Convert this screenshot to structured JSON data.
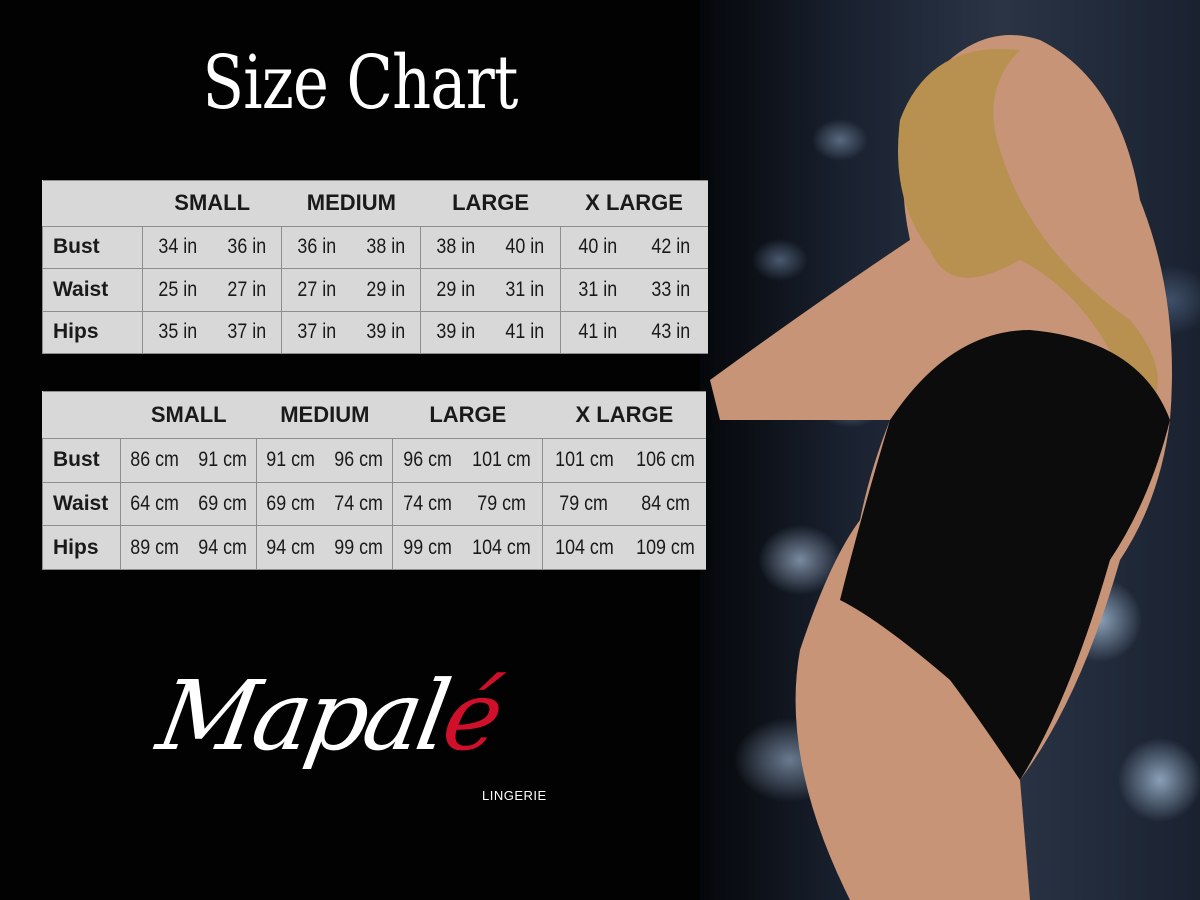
{
  "title": "Size Chart",
  "sizes": [
    "SMALL",
    "MEDIUM",
    "LARGE",
    "X LARGE"
  ],
  "tables": [
    {
      "unit": "in",
      "rows": [
        {
          "label": "Bust",
          "values": [
            "34 in",
            "36 in",
            "36 in",
            "38 in",
            "38 in",
            "40 in",
            "40 in",
            "42 in"
          ]
        },
        {
          "label": "Waist",
          "values": [
            "25 in",
            "27 in",
            "27 in",
            "29 in",
            "29 in",
            "31 in",
            "31 in",
            "33 in"
          ]
        },
        {
          "label": "Hips",
          "values": [
            "35 in",
            "37 in",
            "37 in",
            "39 in",
            "39 in",
            "41 in",
            "41 in",
            "43 in"
          ]
        }
      ]
    },
    {
      "unit": "cm",
      "rows": [
        {
          "label": "Bust",
          "values": [
            "86 cm",
            "91 cm",
            "91 cm",
            "96 cm",
            "96 cm",
            "101 cm",
            "101 cm",
            "106 cm"
          ]
        },
        {
          "label": "Waist",
          "values": [
            "64 cm",
            "69 cm",
            "69 cm",
            "74 cm",
            "74 cm",
            "79 cm",
            "79 cm",
            "84 cm"
          ]
        },
        {
          "label": "Hips",
          "values": [
            "89 cm",
            "94 cm",
            "94 cm",
            "99 cm",
            "99 cm",
            "104 cm",
            "104 cm",
            "109 cm"
          ]
        }
      ]
    }
  ],
  "logo": {
    "main": "Mapal",
    "accent": "é",
    "sub": "LINGERIE"
  },
  "colors": {
    "background": "#000000",
    "table_bg": "#d8d8d8",
    "logo_accent": "#d0102a"
  }
}
